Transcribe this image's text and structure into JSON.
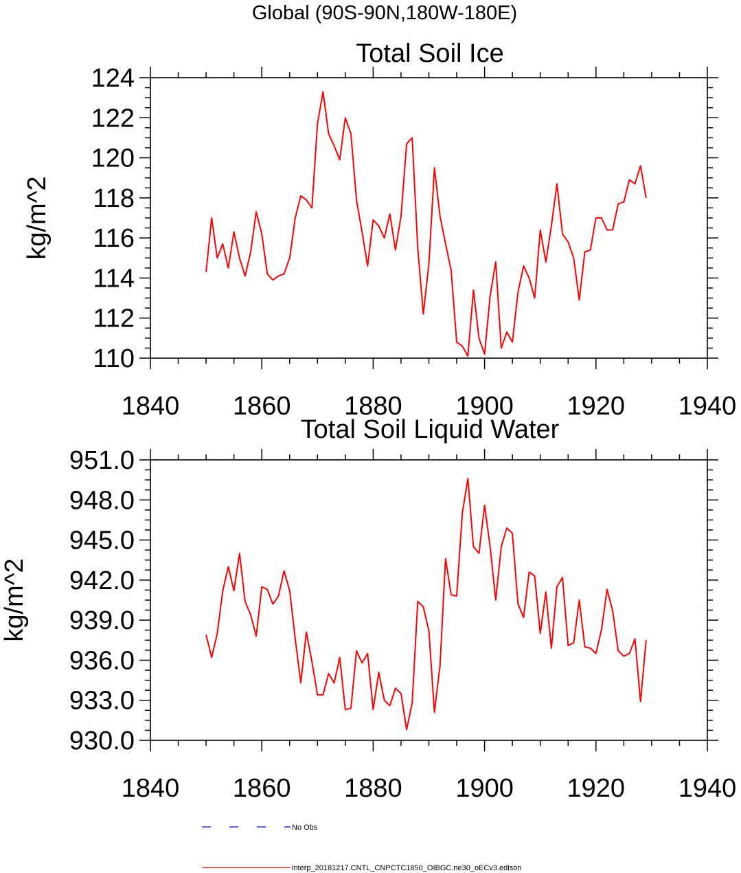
{
  "figure": {
    "main_title": "Global (90S-90N,180W-180E)"
  },
  "chart_data": [
    {
      "type": "line",
      "title": "Total Soil Ice",
      "xlabel": "",
      "ylabel": "kg/m^2",
      "xlim": [
        1840,
        1940
      ],
      "ylim": [
        110,
        124
      ],
      "x_ticks": [
        1840,
        1860,
        1880,
        1900,
        1920,
        1940
      ],
      "y_ticks": [
        110,
        112,
        114,
        116,
        118,
        120,
        122,
        124
      ],
      "y_tick_labels": [
        "110",
        "112",
        "114",
        "116",
        "118",
        "120",
        "122",
        "124"
      ],
      "grid": false,
      "series": [
        {
          "name": "interp_20181217.CNTL_CNPCTC1850_OIBGC.ne30_oECv3.edison",
          "color": "#ff0000",
          "x": [
            1850,
            1851,
            1852,
            1853,
            1854,
            1855,
            1856,
            1857,
            1858,
            1859,
            1860,
            1861,
            1862,
            1863,
            1864,
            1865,
            1866,
            1867,
            1868,
            1869,
            1870,
            1871,
            1872,
            1873,
            1874,
            1875,
            1876,
            1877,
            1878,
            1879,
            1880,
            1881,
            1882,
            1883,
            1884,
            1885,
            1886,
            1887,
            1888,
            1889,
            1890,
            1891,
            1892,
            1893,
            1894,
            1895,
            1896,
            1897,
            1898,
            1899,
            1900,
            1901,
            1902,
            1903,
            1904,
            1905,
            1906,
            1907,
            1908,
            1909,
            1910,
            1911,
            1912,
            1913,
            1914,
            1915,
            1916,
            1917,
            1918,
            1919,
            1920,
            1921,
            1922,
            1923,
            1924,
            1925,
            1926,
            1927,
            1928,
            1929
          ],
          "values": [
            114.3,
            117.0,
            115.0,
            115.7,
            114.5,
            116.3,
            115.0,
            114.1,
            115.3,
            117.3,
            116.2,
            114.2,
            113.9,
            114.1,
            114.2,
            115.0,
            117.0,
            118.1,
            117.9,
            117.5,
            121.7,
            123.3,
            121.2,
            120.6,
            119.9,
            122.0,
            121.2,
            117.9,
            116.3,
            114.6,
            116.9,
            116.6,
            116.0,
            117.2,
            115.4,
            117.1,
            120.7,
            121.0,
            115.5,
            112.2,
            114.7,
            119.5,
            117.1,
            115.7,
            114.4,
            110.8,
            110.6,
            110.1,
            113.4,
            111.0,
            110.2,
            113.1,
            114.8,
            110.5,
            111.3,
            110.8,
            113.3,
            114.6,
            114.0,
            113.0,
            116.4,
            114.8,
            116.6,
            118.7,
            116.2,
            115.8,
            115.0,
            112.9,
            115.3,
            115.4,
            117.0,
            117.0,
            116.4,
            116.4,
            117.7,
            117.8,
            118.9,
            118.7,
            119.6,
            118.0
          ]
        }
      ]
    },
    {
      "type": "line",
      "title": "Total Soil Liquid Water",
      "xlabel": "",
      "ylabel": "kg/m^2",
      "xlim": [
        1840,
        1940
      ],
      "ylim": [
        930,
        951
      ],
      "x_ticks": [
        1840,
        1860,
        1880,
        1900,
        1920,
        1940
      ],
      "y_ticks": [
        930,
        933,
        936,
        939,
        942,
        945,
        948,
        951
      ],
      "y_tick_labels": [
        "930.0",
        "933.0",
        "936.0",
        "939.0",
        "942.0",
        "945.0",
        "948.0",
        "951.0"
      ],
      "grid": false,
      "series": [
        {
          "name": "interp_20181217.CNTL_CNPCTC1850_OIBGC.ne30_oECv3.edison",
          "color": "#ff0000",
          "x": [
            1850,
            1851,
            1852,
            1853,
            1854,
            1855,
            1856,
            1857,
            1858,
            1859,
            1860,
            1861,
            1862,
            1863,
            1864,
            1865,
            1866,
            1867,
            1868,
            1869,
            1870,
            1871,
            1872,
            1873,
            1874,
            1875,
            1876,
            1877,
            1878,
            1879,
            1880,
            1881,
            1882,
            1883,
            1884,
            1885,
            1886,
            1887,
            1888,
            1889,
            1890,
            1891,
            1892,
            1893,
            1894,
            1895,
            1896,
            1897,
            1898,
            1899,
            1900,
            1901,
            1902,
            1903,
            1904,
            1905,
            1906,
            1907,
            1908,
            1909,
            1910,
            1911,
            1912,
            1913,
            1914,
            1915,
            1916,
            1917,
            1918,
            1919,
            1920,
            1921,
            1922,
            1923,
            1924,
            1925,
            1926,
            1927,
            1928,
            1929
          ],
          "values": [
            937.9,
            936.2,
            938.0,
            941.2,
            943.0,
            941.2,
            944.0,
            940.4,
            939.4,
            937.8,
            941.5,
            941.3,
            940.2,
            940.8,
            942.7,
            941.2,
            937.6,
            934.3,
            938.1,
            935.9,
            933.4,
            933.4,
            935.0,
            934.3,
            936.2,
            932.3,
            932.4,
            936.7,
            935.8,
            936.5,
            932.3,
            935.1,
            933.0,
            932.6,
            933.9,
            933.5,
            930.8,
            932.8,
            940.4,
            940.0,
            938.2,
            932.1,
            935.6,
            943.6,
            940.9,
            940.8,
            947.0,
            949.6,
            944.5,
            944.0,
            947.6,
            944.5,
            940.5,
            944.5,
            945.9,
            945.5,
            940.2,
            939.2,
            942.6,
            942.3,
            938.0,
            941.1,
            936.9,
            941.5,
            942.2,
            937.1,
            937.3,
            940.5,
            937.0,
            936.9,
            936.5,
            938.3,
            941.3,
            939.7,
            936.7,
            936.3,
            936.5,
            937.6,
            932.9,
            937.5
          ]
        }
      ]
    }
  ],
  "legend": {
    "placement": "bottom",
    "items": [
      {
        "label": "No Obs",
        "color": "#0000ff",
        "style": "dashed"
      },
      {
        "label": "interp_20181217.CNTL_CNPCTC1850_OIBGC.ne30_oECv3.edison",
        "color": "#ff0000",
        "style": "solid"
      }
    ]
  }
}
